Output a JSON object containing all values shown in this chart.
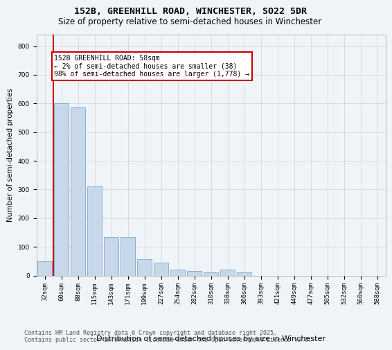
{
  "title_line1": "152B, GREENHILL ROAD, WINCHESTER, SO22 5DR",
  "title_line2": "Size of property relative to semi-detached houses in Winchester",
  "xlabel": "Distribution of semi-detached houses by size in Winchester",
  "ylabel": "Number of semi-detached properties",
  "categories": [
    "32sqm",
    "60sqm",
    "88sqm",
    "115sqm",
    "143sqm",
    "171sqm",
    "199sqm",
    "227sqm",
    "254sqm",
    "282sqm",
    "310sqm",
    "338sqm",
    "366sqm",
    "393sqm",
    "421sqm",
    "449sqm",
    "477sqm",
    "505sqm",
    "532sqm",
    "560sqm",
    "588sqm"
  ],
  "values": [
    50,
    600,
    585,
    310,
    135,
    135,
    58,
    45,
    20,
    15,
    10,
    20,
    10,
    0,
    0,
    0,
    0,
    0,
    0,
    0,
    0
  ],
  "bar_color": "#c8d8ea",
  "bar_edge_color": "#7aaac8",
  "annotation_text": "152B GREENHILL ROAD: 58sqm\n← 2% of semi-detached houses are smaller (38)\n98% of semi-detached houses are larger (1,778) →",
  "annotation_box_color": "#ffffff",
  "annotation_box_edge_color": "#cc0000",
  "footer_text": "Contains HM Land Registry data © Crown copyright and database right 2025.\nContains public sector information licensed under the Open Government Licence v3.0.",
  "ylim": [
    0,
    840
  ],
  "yticks": [
    0,
    100,
    200,
    300,
    400,
    500,
    600,
    700,
    800
  ],
  "grid_color": "#d0d8e0",
  "bg_color": "#f0f4f8",
  "red_line_color": "#cc0000",
  "red_line_x": 0.5,
  "title_fontsize": 9.5,
  "subtitle_fontsize": 8.5,
  "xlabel_fontsize": 8,
  "ylabel_fontsize": 7.5,
  "tick_fontsize": 6.5,
  "footer_fontsize": 6,
  "annotation_fontsize": 7
}
